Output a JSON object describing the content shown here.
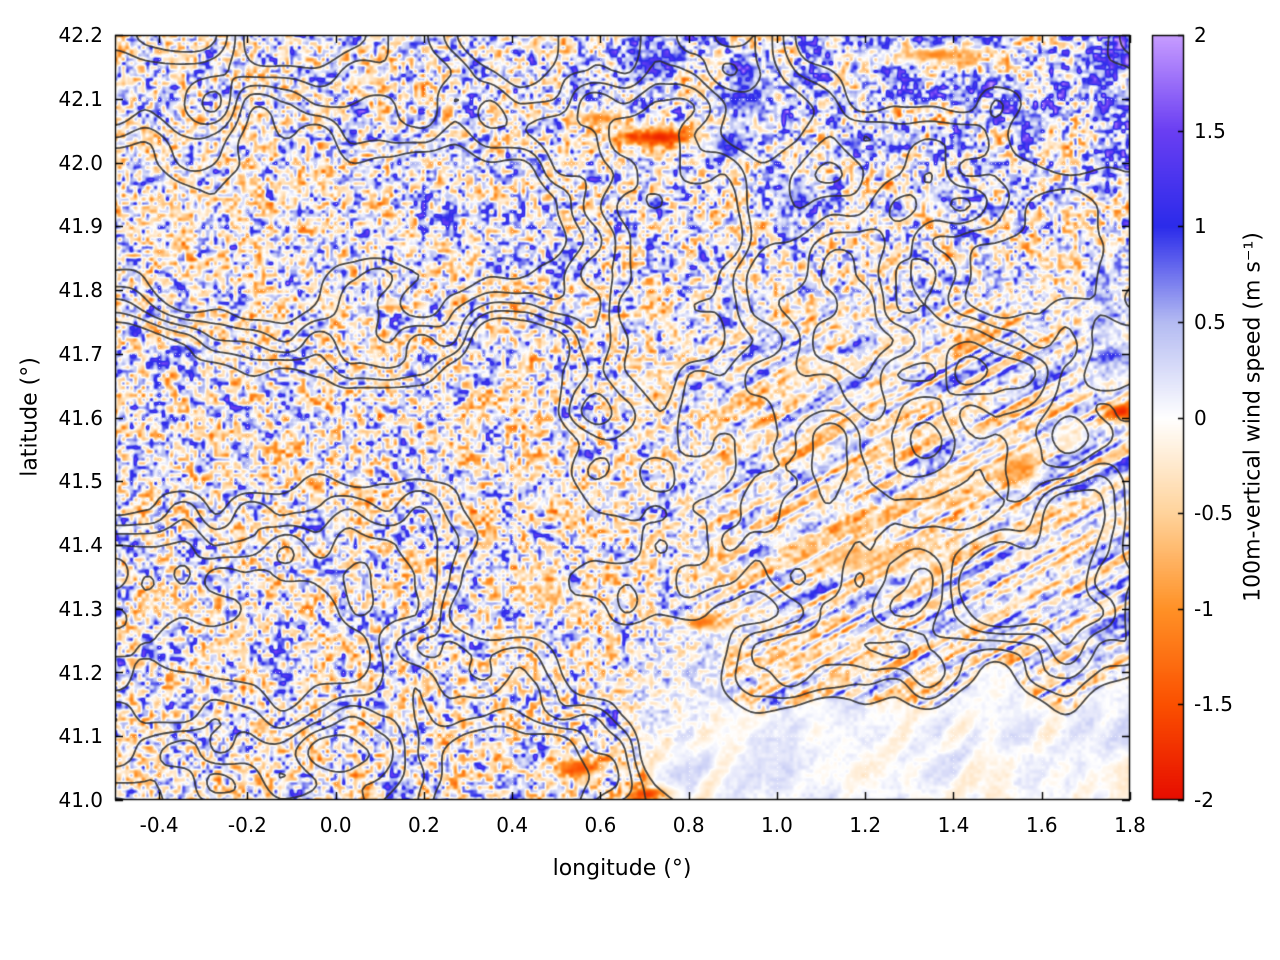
{
  "chart_data": {
    "type": "heatmap",
    "title": "",
    "xlabel": "longitude (°)",
    "ylabel": "latitude (°)",
    "xlim": [
      -0.5,
      1.8
    ],
    "ylim": [
      41.0,
      42.2
    ],
    "grid": true,
    "xticks": [
      {
        "v": -0.4,
        "label": "-0.4"
      },
      {
        "v": -0.2,
        "label": "-0.2"
      },
      {
        "v": 0.0,
        "label": "0.0"
      },
      {
        "v": 0.2,
        "label": "0.2"
      },
      {
        "v": 0.4,
        "label": "0.4"
      },
      {
        "v": 0.6,
        "label": "0.6"
      },
      {
        "v": 0.8,
        "label": "0.8"
      },
      {
        "v": 1.0,
        "label": "1.0"
      },
      {
        "v": 1.2,
        "label": "1.2"
      },
      {
        "v": 1.4,
        "label": "1.4"
      },
      {
        "v": 1.6,
        "label": "1.6"
      },
      {
        "v": 1.8,
        "label": "1.8"
      }
    ],
    "yticks": [
      {
        "v": 41.0,
        "label": "41.0"
      },
      {
        "v": 41.1,
        "label": "41.1"
      },
      {
        "v": 41.2,
        "label": "41.2"
      },
      {
        "v": 41.3,
        "label": "41.3"
      },
      {
        "v": 41.4,
        "label": "41.4"
      },
      {
        "v": 41.5,
        "label": "41.5"
      },
      {
        "v": 41.6,
        "label": "41.6"
      },
      {
        "v": 41.7,
        "label": "41.7"
      },
      {
        "v": 41.8,
        "label": "41.8"
      },
      {
        "v": 41.9,
        "label": "41.9"
      },
      {
        "v": 42.0,
        "label": "42.0"
      },
      {
        "v": 42.1,
        "label": "42.1"
      },
      {
        "v": 42.2,
        "label": "42.2"
      }
    ],
    "colorbar": {
      "label": "100m-vertical wind speed (m s⁻¹)",
      "min": -2,
      "max": 2,
      "ticks": [
        {
          "v": 2,
          "label": "2"
        },
        {
          "v": 1.5,
          "label": "1.5"
        },
        {
          "v": 1,
          "label": "1"
        },
        {
          "v": 0.5,
          "label": "0.5"
        },
        {
          "v": 0,
          "label": "0"
        },
        {
          "v": -0.5,
          "label": "-0.5"
        },
        {
          "v": -1,
          "label": "-1"
        },
        {
          "v": -1.5,
          "label": "-1.5"
        },
        {
          "v": -2,
          "label": "-2"
        }
      ],
      "stops": [
        {
          "v": -2,
          "color": "#e60c00"
        },
        {
          "v": -1.5,
          "color": "#fb5000"
        },
        {
          "v": -1,
          "color": "#ff9126"
        },
        {
          "v": -0.5,
          "color": "#ffd39b"
        },
        {
          "v": 0,
          "color": "#ffffff"
        },
        {
          "v": 0.5,
          "color": "#b4bbf2"
        },
        {
          "v": 1,
          "color": "#2b2bea"
        },
        {
          "v": 1.5,
          "color": "#6a3ef2"
        },
        {
          "v": 2,
          "color": "#c79cff"
        }
      ]
    },
    "contours": {
      "description": "unlabeled terrain elevation contour lines overlaid in dark grey",
      "color": "#2f2f2f",
      "levels": [
        0.18,
        0.34,
        0.5,
        0.66,
        0.82
      ]
    },
    "field": {
      "description": "Fine-grained turbulent vertical-wind-speed speckle (about ±0.8 m/s; orange = downdraft, blue = updraft) over land; smooth near-zero white field over the sea in the bottom-right corner; enhanced blue updraft patches in the north-east; wave-like diagonal streaks east/lee of the mountains; isolated strong red/orange downdraft streaks.",
      "sea_region": "bottom-right triangle below a coastline running from about (0.95, 41.0) to (1.8, 41.3)",
      "features": [
        {
          "name": "strong-downdraft-streak",
          "lon": 0.73,
          "lat": 42.04,
          "rx": 0.1,
          "ry": 0.016,
          "value": -1.9,
          "mix": 0.95
        },
        {
          "name": "downdraft-streak",
          "lon": 0.6,
          "lat": 42.07,
          "rx": 0.05,
          "ry": 0.012,
          "value": -1.4,
          "mix": 0.85
        },
        {
          "name": "downdraft-streak-north",
          "lon": 1.36,
          "lat": 42.17,
          "rx": 0.11,
          "ry": 0.014,
          "value": -1.3,
          "mix": 0.9
        },
        {
          "name": "strong-downdraft-east-edge",
          "lon": 1.78,
          "lat": 41.61,
          "rx": 0.04,
          "ry": 0.014,
          "value": -1.9,
          "mix": 0.95
        },
        {
          "name": "downdraft-spot",
          "lon": 0.83,
          "lat": 41.28,
          "rx": 0.05,
          "ry": 0.013,
          "value": -1.5,
          "mix": 0.85
        },
        {
          "name": "downdraft-spot-south",
          "lon": 0.55,
          "lat": 41.05,
          "rx": 0.06,
          "ry": 0.016,
          "value": -1.6,
          "mix": 0.9
        },
        {
          "name": "strong-downdraft-south",
          "lon": 0.7,
          "lat": 41.01,
          "rx": 0.05,
          "ry": 0.012,
          "value": -1.8,
          "mix": 0.9
        },
        {
          "name": "lee-downdraft-band",
          "lon": 1.17,
          "lat": 41.38,
          "rx": 0.13,
          "ry": 0.022,
          "value": -1.0,
          "mix": 0.6
        },
        {
          "name": "downdraft-band-west",
          "lon": 0.47,
          "lat": 41.33,
          "rx": 0.06,
          "ry": 0.015,
          "value": -1.1,
          "mix": 0.6
        },
        {
          "name": "updraft-cluster-ne",
          "lon": 0.93,
          "lat": 42.1,
          "rx": 0.09,
          "ry": 0.05,
          "value": 1.5,
          "mix": 0.5
        },
        {
          "name": "updraft-patch",
          "lon": 0.72,
          "lat": 42.16,
          "rx": 0.05,
          "ry": 0.04,
          "value": 1.4,
          "mix": 0.5
        },
        {
          "name": "updraft-patch-2",
          "lon": 1.05,
          "lat": 41.95,
          "rx": 0.06,
          "ry": 0.04,
          "value": 1.2,
          "mix": 0.45
        },
        {
          "name": "updraft-east-edge",
          "lon": 1.74,
          "lat": 41.78,
          "rx": 0.05,
          "ry": 0.09,
          "value": 1.1,
          "mix": 0.4
        },
        {
          "name": "downdraft-ridge-east",
          "lon": 1.55,
          "lat": 41.52,
          "rx": 0.05,
          "ry": 0.025,
          "value": -1.2,
          "mix": 0.7
        },
        {
          "name": "updraft-near-streak",
          "lon": 0.88,
          "lat": 42.03,
          "rx": 0.05,
          "ry": 0.02,
          "value": 1.6,
          "mix": 0.6
        }
      ]
    },
    "legend_position": "vertical colorbar on right"
  }
}
